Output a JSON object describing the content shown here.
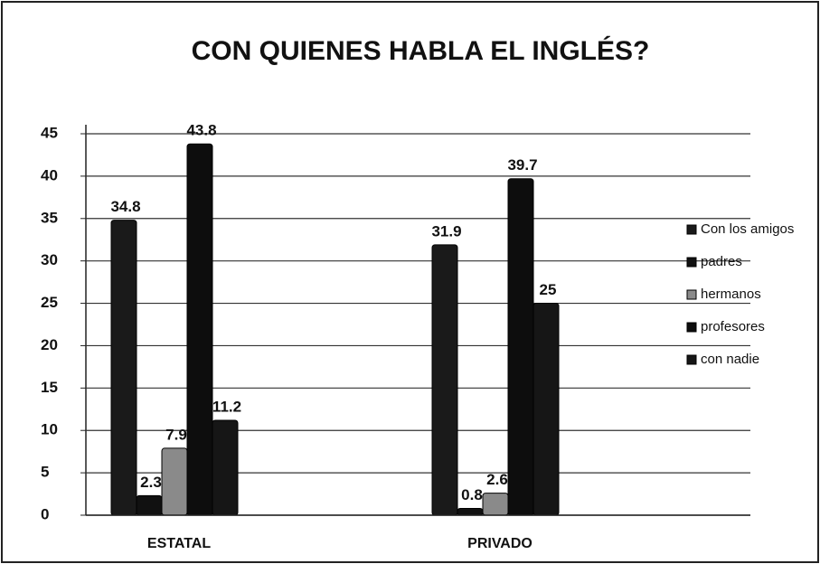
{
  "chart_data": {
    "type": "bar",
    "title": "CON QUIENES HABLA EL  INGLÉS?",
    "categories": [
      "ESTATAL",
      "PRIVADO"
    ],
    "series": [
      {
        "name": "Con los amigos",
        "color": "#1a1a1a",
        "values": [
          34.8,
          31.9
        ]
      },
      {
        "name": "padres",
        "color": "#111111",
        "values": [
          2.3,
          0.8
        ]
      },
      {
        "name": "hermanos",
        "color": "#8a8a8a",
        "values": [
          7.9,
          2.6
        ]
      },
      {
        "name": "profesores",
        "color": "#0d0d0d",
        "values": [
          43.8,
          39.7
        ]
      },
      {
        "name": "con nadie",
        "color": "#161616",
        "values": [
          11.2,
          25
        ]
      }
    ],
    "ylim": [
      0,
      45
    ],
    "yticks": [
      0,
      5,
      10,
      15,
      20,
      25,
      30,
      35,
      40,
      45
    ],
    "grid": true,
    "legend": "right"
  }
}
